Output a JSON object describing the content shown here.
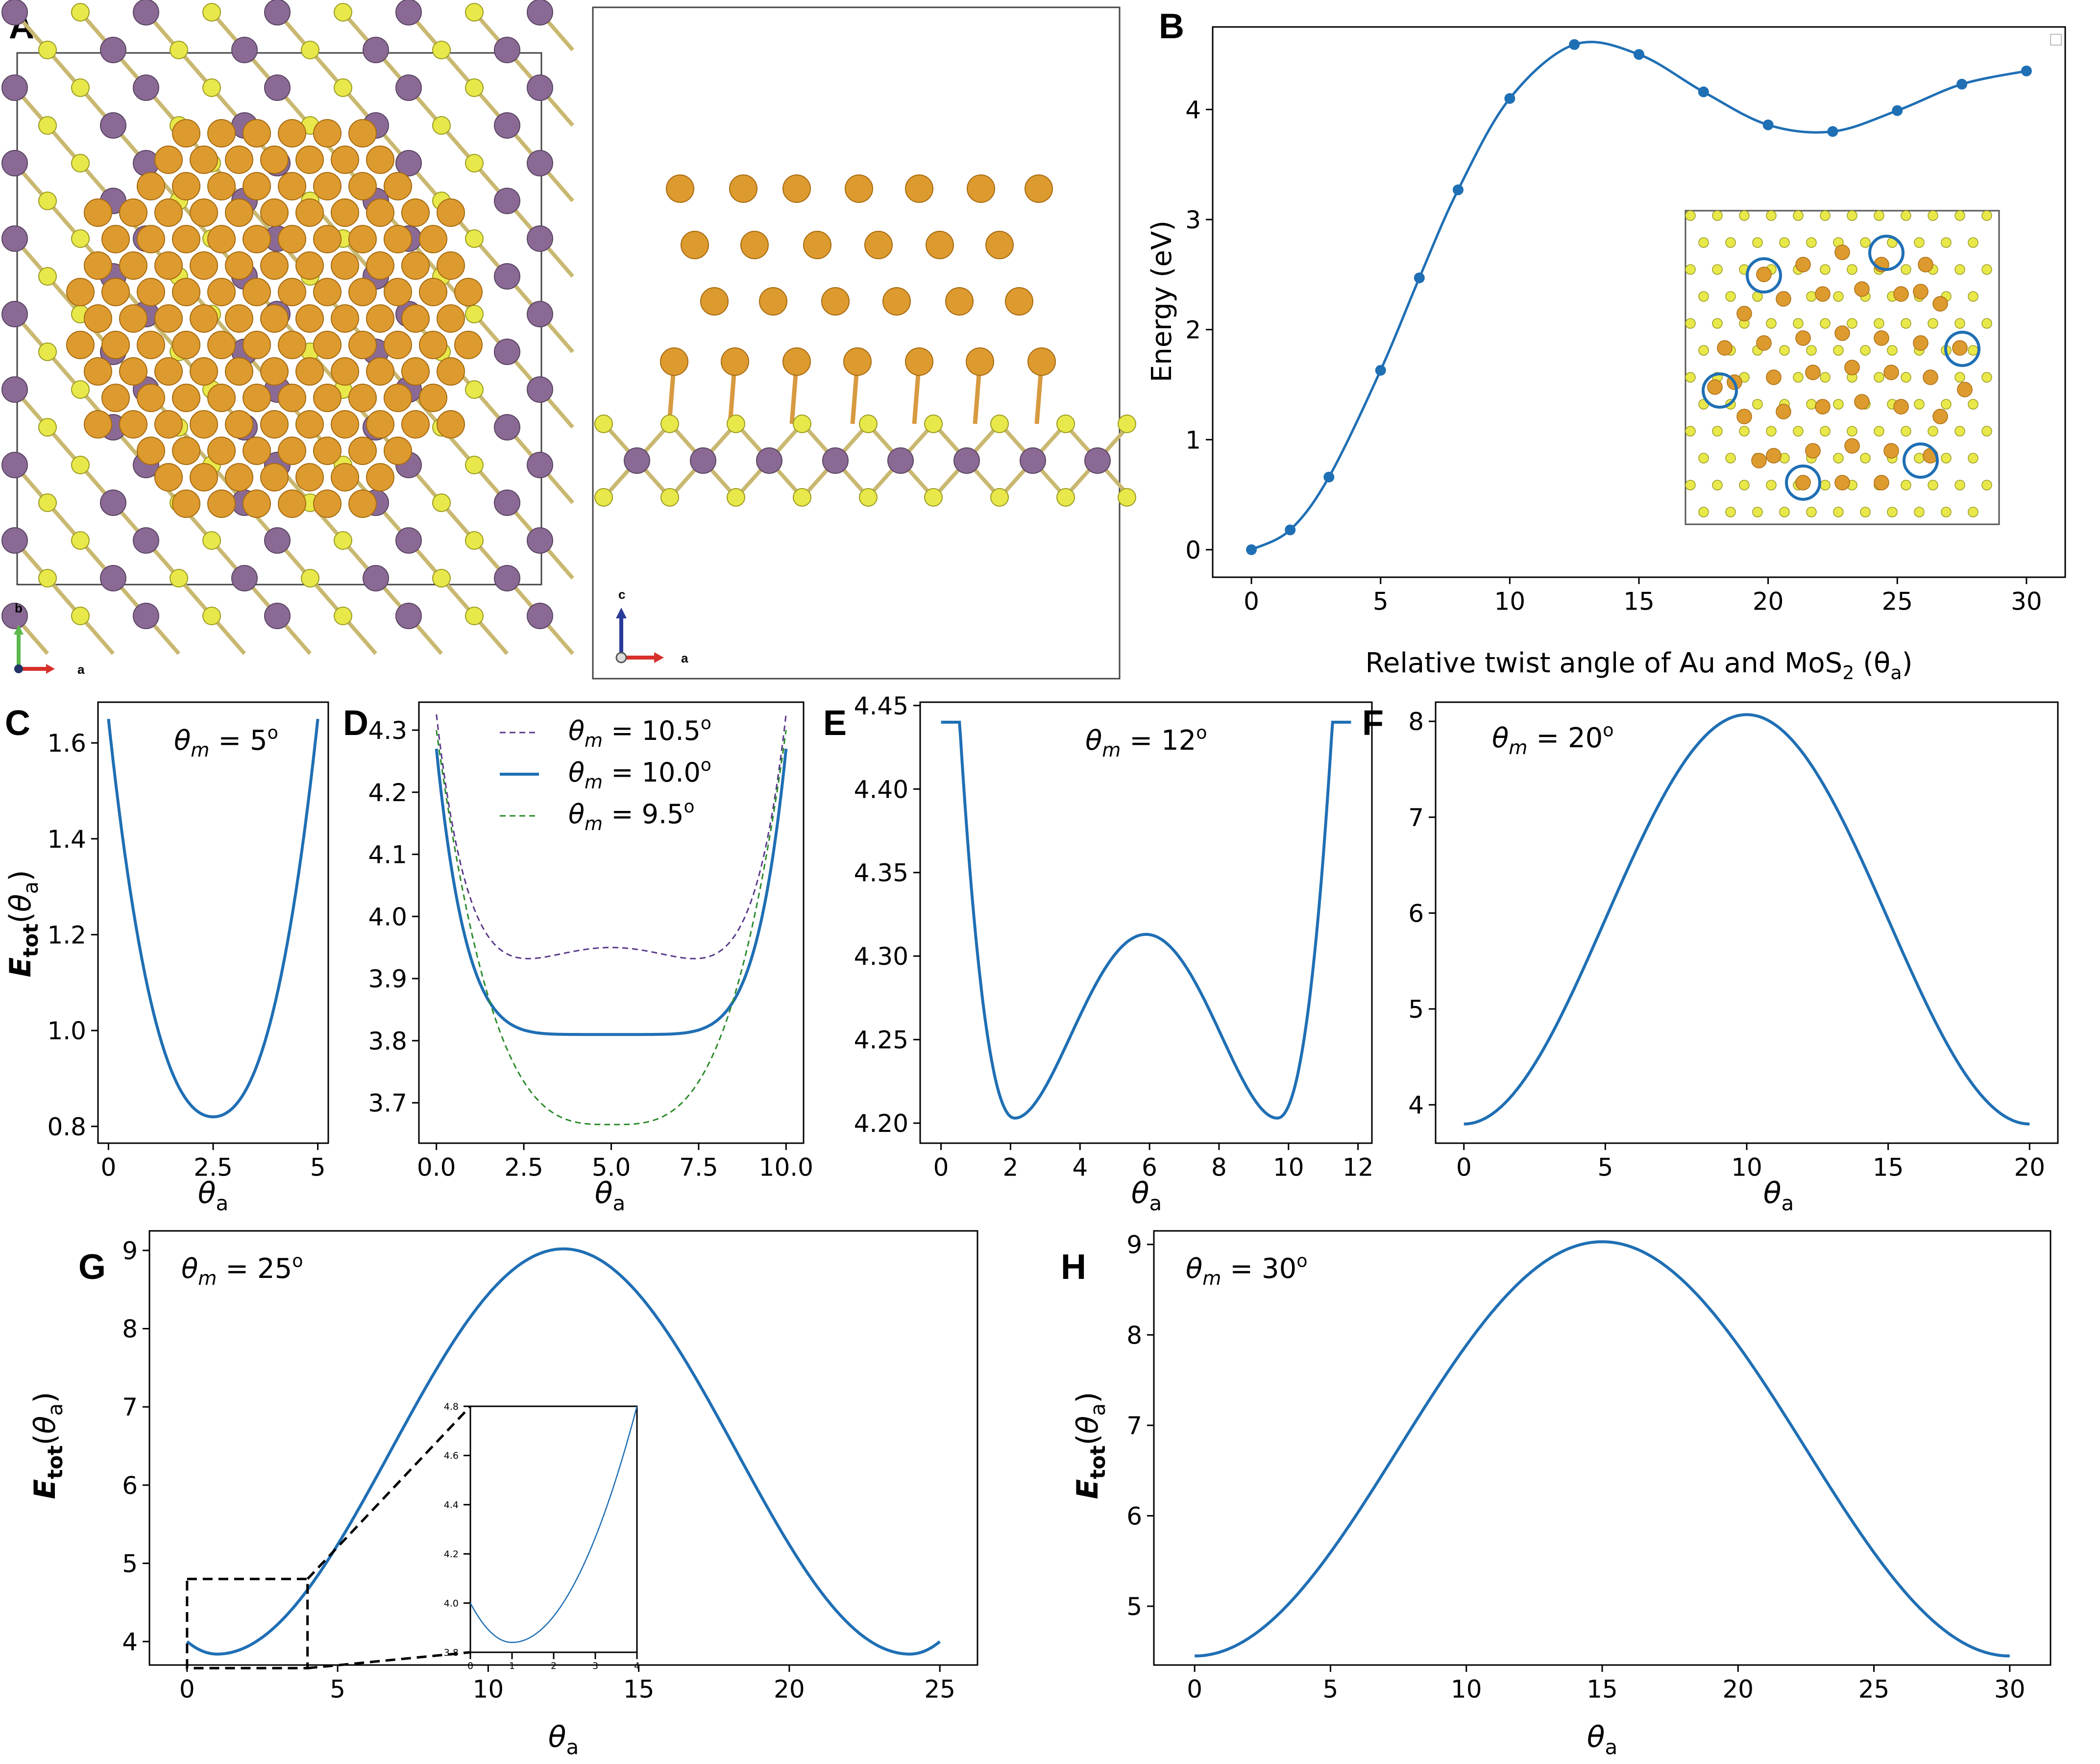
{
  "colors": {
    "line": "#1f6fb4",
    "gold": "#dd9a2e",
    "purple": "#8a6a94",
    "yellow": "#e8e84a",
    "green_dash": "#2a8a2a",
    "purple_dash": "#5a3a8a"
  },
  "panel_labels": [
    "A",
    "B",
    "C",
    "D",
    "E",
    "F",
    "G",
    "H"
  ],
  "structure": {
    "top_view_axes": {
      "b": "b",
      "a": "a"
    },
    "side_view_axes": {
      "c": "c",
      "a": "a"
    }
  },
  "chart_data": [
    {
      "id": "B",
      "type": "line",
      "xlabel": "Relative twist angle of Au and MoS2 (θa)",
      "xlabel_main": "Relative twist angle of Au and MoS",
      "xlabel_sub": "2",
      "xlabel_tail": " (θ",
      "xlabel_tail_sub": "a",
      "xlabel_end": ")",
      "ylabel": "Energy (eV)",
      "xlim": [
        0,
        30
      ],
      "ylim": [
        0,
        4.6
      ],
      "xticks": [
        0,
        5,
        10,
        15,
        20,
        25,
        30
      ],
      "yticks": [
        0,
        1,
        2,
        3,
        4
      ],
      "points_x": [
        0,
        1.5,
        3,
        5,
        6.5,
        8,
        10,
        12.5,
        15,
        17.5,
        20,
        22.5,
        25,
        27.5,
        30
      ],
      "points_y": [
        0.0,
        0.18,
        0.66,
        1.63,
        2.47,
        3.27,
        4.1,
        4.59,
        4.5,
        4.16,
        3.86,
        3.8,
        3.99,
        4.23,
        4.35
      ]
    },
    {
      "id": "C",
      "type": "line",
      "title": "θm = 5°",
      "title_main": "θ",
      "title_sub": "m",
      "title_tail": " = 5",
      "title_sup": "o",
      "ylabel": "Etot(θa)",
      "xlabel": "θa",
      "xlim": [
        0,
        5
      ],
      "ylim": [
        0.8,
        1.65
      ],
      "xticks": [
        0,
        2.5,
        5
      ],
      "yticks": [
        0.8,
        1.0,
        1.2,
        1.4,
        1.6
      ],
      "curve": {
        "kind": "parabola",
        "x0": 2.5,
        "ymin": 0.82,
        "ymax": 1.65
      }
    },
    {
      "id": "D",
      "type": "line",
      "xlabel": "θa",
      "xlim": [
        0,
        10
      ],
      "ylim": [
        3.65,
        4.33
      ],
      "xticks": [
        0.0,
        2.5,
        5.0,
        7.5,
        10.0
      ],
      "yticks": [
        3.7,
        3.8,
        3.9,
        4.0,
        4.1,
        4.2,
        4.3
      ],
      "series": [
        {
          "name": "θm = 10.5°",
          "label_tail": " = 10.5",
          "ends": 4.33,
          "mid": 3.95,
          "well": 3.935,
          "style": "dashed-purple"
        },
        {
          "name": "θm = 10.0°",
          "label_tail": " = 10.0",
          "ends": 4.27,
          "mid": 3.81,
          "well": 3.81,
          "style": "solid"
        },
        {
          "name": "θm = 9.5°",
          "label_tail": " =  9.5",
          "ends": 4.3,
          "mid": 3.665,
          "well": 3.665,
          "style": "dashed-green"
        }
      ]
    },
    {
      "id": "E",
      "type": "line",
      "title": "θm = 12°",
      "title_main": "θ",
      "title_sub": "m",
      "title_tail": " = 12",
      "title_sup": "o",
      "xlabel": "θa",
      "xlim": [
        0,
        12
      ],
      "ylim": [
        4.195,
        4.45
      ],
      "xticks": [
        0,
        2,
        4,
        6,
        8,
        10,
        12
      ],
      "yticks": [
        4.2,
        4.25,
        4.3,
        4.35,
        4.4,
        4.45
      ],
      "curve": {
        "kind": "double-well",
        "xmax": 11.8,
        "ends": 4.44,
        "minima": 4.203,
        "min_x": [
          2.1,
          9.7
        ],
        "peak": 4.313,
        "peak_x": 5.9
      }
    },
    {
      "id": "F",
      "type": "line",
      "title": "θm = 20°",
      "title_main": "θ",
      "title_sub": "m",
      "title_tail": " = 20",
      "title_sup": "o",
      "xlabel": "θa",
      "xlim": [
        0,
        20
      ],
      "ylim": [
        3.6,
        8.2
      ],
      "xticks": [
        0,
        5,
        10,
        15,
        20
      ],
      "yticks": [
        4,
        5,
        6,
        7,
        8
      ],
      "curve": {
        "kind": "cosine",
        "xmax": 20,
        "ymin": 3.8,
        "ymax": 8.07
      }
    },
    {
      "id": "G",
      "type": "line",
      "title": "θm = 25°",
      "title_main": "θ",
      "title_sub": "m",
      "title_tail": " = 25",
      "title_sup": "o",
      "ylabel": "Etot(θa)",
      "xlabel": "θa",
      "xlim": [
        0,
        25
      ],
      "ylim": [
        3.6,
        9.2
      ],
      "xticks": [
        0,
        5,
        10,
        15,
        20,
        25
      ],
      "yticks": [
        4,
        5,
        6,
        7,
        8,
        9
      ],
      "curve": {
        "kind": "cosine-dip",
        "xmax": 25,
        "ends": 4.0,
        "dip": 3.84,
        "dip_x": 1.0,
        "peak": 9.02
      },
      "inset": {
        "xlim": [
          0,
          4
        ],
        "ylim": [
          3.8,
          4.8
        ],
        "xticks": [
          0,
          1,
          2,
          3,
          4
        ],
        "yticks": [
          3.8,
          4.0,
          4.2,
          4.4,
          4.6,
          4.8
        ],
        "xtick_labels": [
          "0",
          "1",
          "2",
          "3",
          "4"
        ],
        "ytick_labels": [
          "3.8",
          "4.0",
          "4.2",
          "4.4",
          "4.6",
          "4.8"
        ]
      }
    },
    {
      "id": "H",
      "type": "line",
      "title": "θm = 30°",
      "title_main": "θ",
      "title_sub": "m",
      "title_tail": " = 30",
      "title_sup": "o",
      "ylabel": "Etot(θa)",
      "xlabel": "θa",
      "xlim": [
        0,
        30
      ],
      "ylim": [
        4.35,
        9.15
      ],
      "xticks": [
        0,
        5,
        10,
        15,
        20,
        25,
        30
      ],
      "yticks": [
        5,
        6,
        7,
        8,
        9
      ],
      "curve": {
        "kind": "cosine",
        "xmax": 30,
        "ymin": 4.45,
        "ymax": 9.03
      }
    }
  ]
}
